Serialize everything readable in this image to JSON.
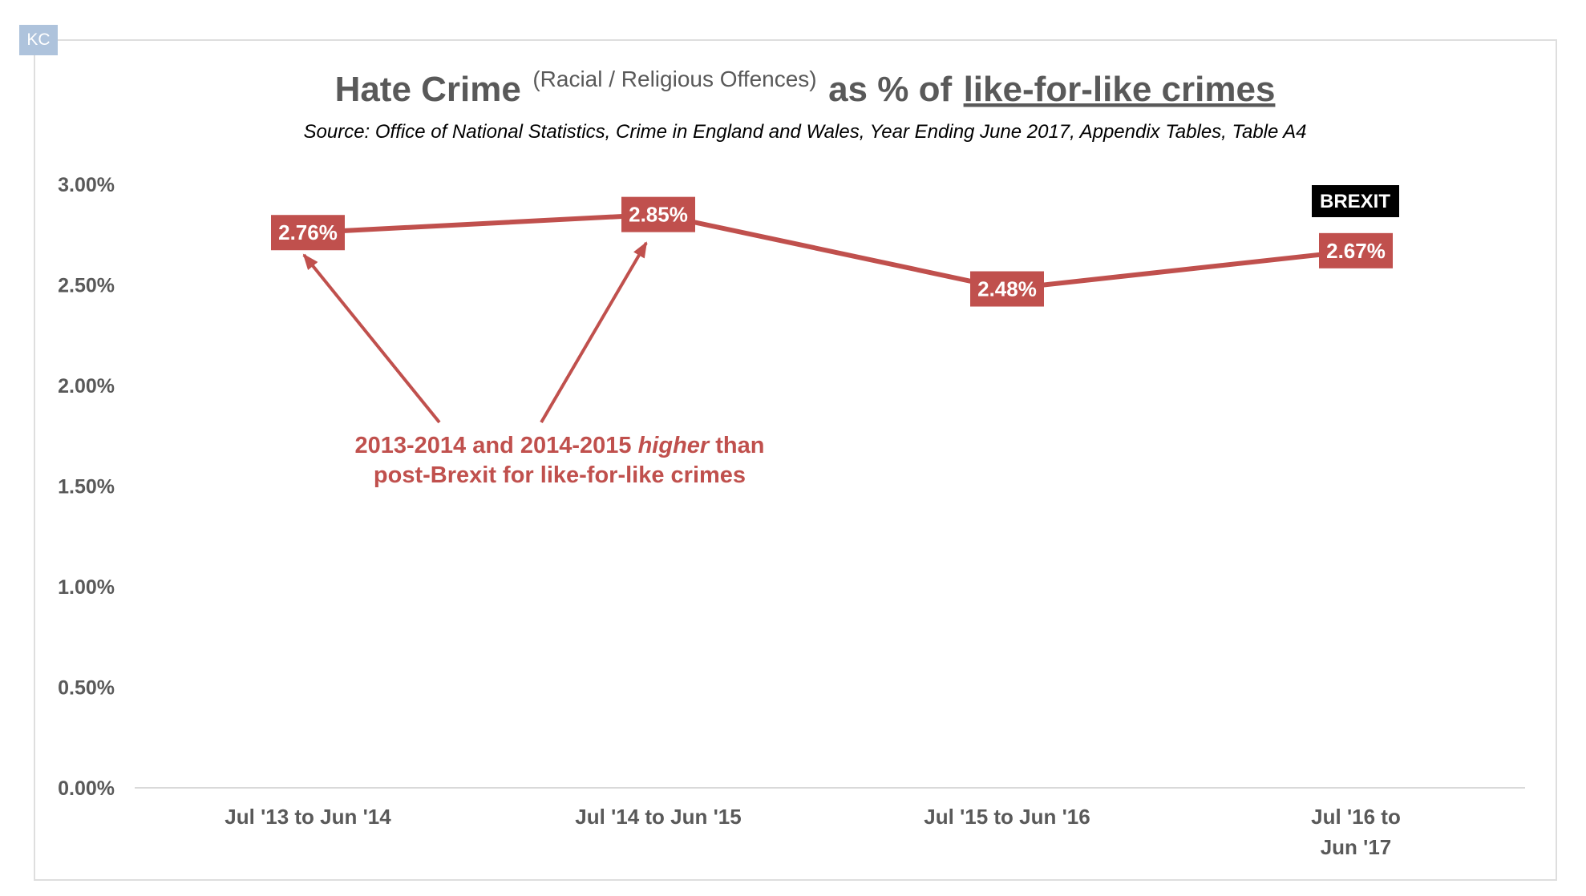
{
  "badge": {
    "text": "KC"
  },
  "chart_data": {
    "type": "line",
    "title": {
      "main": "Hate Crime",
      "paren": "(Racial / Religious Offences)",
      "mid": "as % of",
      "underlined": "like-for-like crimes"
    },
    "subtitle": "Source: Office of National Statistics, Crime in England and Wales, Year Ending June 2017, Appendix Tables, Table A4",
    "categories": [
      [
        "Jul '13 to Jun '14"
      ],
      [
        "Jul '14 to Jun '15"
      ],
      [
        "Jul '15 to Jun '16"
      ],
      [
        "Jul '16 to",
        "Jun '17"
      ]
    ],
    "series": [
      {
        "values": [
          2.76,
          2.85,
          2.48,
          2.67
        ],
        "labels": [
          "2.76%",
          "2.85%",
          "2.48%",
          "2.67%"
        ]
      }
    ],
    "ylim": [
      0,
      3
    ],
    "yticks": [
      "0.00%",
      "0.50%",
      "1.00%",
      "1.50%",
      "2.00%",
      "2.50%",
      "3.00%"
    ],
    "grid": false,
    "marker_label": "BREXIT",
    "annotation": {
      "line1_a": "2013-2014 and 2014-2015 ",
      "line1_em": "higher",
      "line1_b": " than",
      "line2": "post-Brexit for like-for-like crimes"
    },
    "colors": {
      "series": "#c0504d",
      "axis_text": "#595959",
      "marker_bg": "#000000"
    }
  }
}
